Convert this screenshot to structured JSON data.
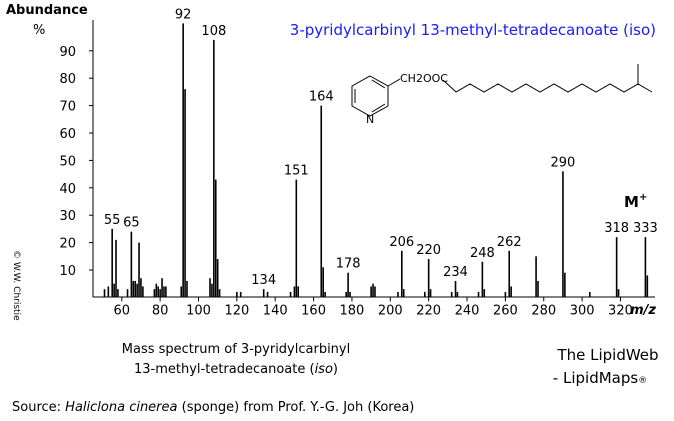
{
  "chart_data": {
    "type": "spectrum",
    "title": "3-pyridylcarbinyl 13-methyl-tetradecanoate (iso)",
    "ylabel": "Abundance",
    "yunit": "%",
    "xlabel": "m/z",
    "ion_label": "M",
    "ion_sup": "+",
    "xlim": [
      45,
      338
    ],
    "ylim": [
      0,
      100
    ],
    "xticks": [
      60,
      80,
      100,
      120,
      140,
      160,
      180,
      200,
      220,
      240,
      260,
      280,
      300,
      320
    ],
    "yticks": [
      10,
      20,
      30,
      40,
      50,
      60,
      70,
      80,
      90
    ],
    "color": "#000000",
    "series": [
      {
        "labels": true,
        "x": [
          55,
          65,
          92,
          108,
          134,
          151,
          164,
          178,
          206,
          220,
          234,
          248,
          262,
          290,
          318,
          333
        ],
        "values": [
          25,
          24,
          100,
          94,
          3,
          43,
          70,
          9,
          17,
          14,
          6,
          13,
          17,
          46,
          22,
          22
        ]
      },
      {
        "x": [
          51,
          53,
          56,
          57,
          58,
          63,
          66,
          67,
          68,
          69,
          70,
          71,
          77,
          78,
          79,
          80,
          81,
          82,
          83,
          91,
          93,
          94,
          106,
          107,
          109,
          110,
          111,
          120,
          122,
          136,
          148,
          150,
          152,
          165,
          166,
          177,
          179,
          190,
          191,
          192,
          204,
          207,
          218,
          221,
          232,
          235,
          246,
          249,
          260,
          263,
          276,
          277,
          291,
          304,
          319,
          334
        ],
        "values": [
          3,
          4,
          5,
          21,
          3,
          3,
          6,
          6,
          5,
          20,
          7,
          4,
          3,
          5,
          4,
          3,
          7,
          4,
          4,
          4,
          76,
          6,
          7,
          5,
          43,
          14,
          3,
          2,
          2,
          2,
          2,
          4,
          4,
          11,
          2,
          2,
          2,
          4,
          5,
          4,
          2,
          3,
          2,
          3,
          2,
          2,
          2,
          3,
          2,
          4,
          15,
          6,
          9,
          2,
          3,
          8
        ]
      }
    ]
  },
  "structure": {
    "group": "CH2OOC",
    "atom": "N"
  },
  "caption": {
    "line1": "Mass spectrum of 3-pyridylcarbinyl",
    "line2_a": "13-methyl-tetradecanoate (",
    "line2_b": "iso",
    "line2_c": ")"
  },
  "credit": {
    "line1": "The LipidWeb",
    "line2": "- LipidMaps",
    "mark": "®"
  },
  "source": {
    "a": "Source: ",
    "b": "Haliclona cinerea",
    "c": " (sponge) from Prof. Y.-G. Joh (Korea)"
  },
  "copyright": "© W.W. Christie"
}
